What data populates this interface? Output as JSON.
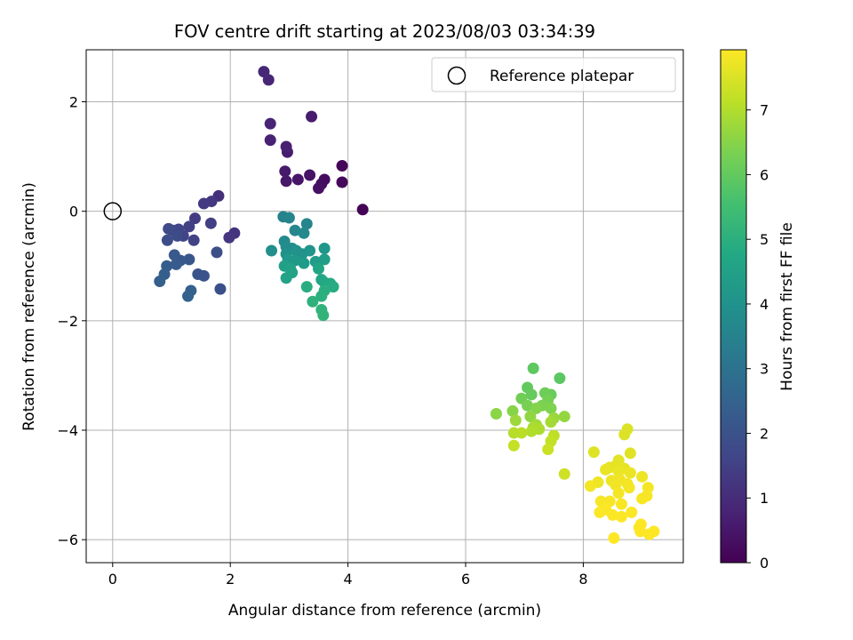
{
  "chart_data": {
    "type": "scatter",
    "title": "FOV centre drift starting at 2023/08/03 03:34:39",
    "xlabel": "Angular distance from reference (arcmin)",
    "ylabel": "Rotation from reference (arcmin)",
    "xlim": [
      -0.45,
      9.7
    ],
    "ylim": [
      -6.42,
      2.95
    ],
    "xticks": [
      0,
      2,
      4,
      6,
      8
    ],
    "yticks": [
      -6,
      -4,
      -2,
      0,
      2
    ],
    "xtick_labels": [
      "0",
      "2",
      "4",
      "6",
      "8"
    ],
    "ytick_labels": [
      "−6",
      "−4",
      "−2",
      "0",
      "2"
    ],
    "grid": true,
    "legend": {
      "position": "top-right",
      "label": "Reference platepar",
      "marker": "open-circle"
    },
    "reference_point": {
      "x": 0,
      "y": 0
    },
    "colorbar": {
      "label": "Hours from first FF file",
      "colormap": "viridis",
      "range": [
        0,
        7.93
      ],
      "ticks": [
        0,
        1,
        2,
        3,
        4,
        5,
        6,
        7
      ],
      "tick_labels": [
        "0",
        "1",
        "2",
        "3",
        "4",
        "5",
        "6",
        "7"
      ]
    },
    "points": [
      {
        "x": 4.25,
        "y": 0.03,
        "t": 0.02
      },
      {
        "x": 3.9,
        "y": 0.83,
        "t": 0.1
      },
      {
        "x": 3.9,
        "y": 0.53,
        "t": 0.15
      },
      {
        "x": 3.6,
        "y": 0.58,
        "t": 0.25
      },
      {
        "x": 3.55,
        "y": 0.5,
        "t": 0.3
      },
      {
        "x": 3.5,
        "y": 0.42,
        "t": 0.35
      },
      {
        "x": 3.35,
        "y": 0.66,
        "t": 0.4
      },
      {
        "x": 3.15,
        "y": 0.58,
        "t": 0.45
      },
      {
        "x": 2.95,
        "y": 0.55,
        "t": 0.5
      },
      {
        "x": 2.93,
        "y": 0.73,
        "t": 0.55
      },
      {
        "x": 3.38,
        "y": 1.73,
        "t": 0.6
      },
      {
        "x": 2.97,
        "y": 1.08,
        "t": 0.65
      },
      {
        "x": 2.95,
        "y": 1.18,
        "t": 0.7
      },
      {
        "x": 2.68,
        "y": 1.3,
        "t": 0.75
      },
      {
        "x": 2.68,
        "y": 1.6,
        "t": 0.8
      },
      {
        "x": 2.65,
        "y": 2.4,
        "t": 0.85
      },
      {
        "x": 2.57,
        "y": 2.55,
        "t": 0.9
      },
      {
        "x": 1.8,
        "y": 0.28,
        "t": 1.1
      },
      {
        "x": 2.07,
        "y": -0.4,
        "t": 1.2
      },
      {
        "x": 1.98,
        "y": -0.48,
        "t": 1.25
      },
      {
        "x": 1.68,
        "y": 0.18,
        "t": 1.3
      },
      {
        "x": 1.55,
        "y": 0.14,
        "t": 1.35
      },
      {
        "x": 1.4,
        "y": -0.13,
        "t": 1.4
      },
      {
        "x": 1.67,
        "y": -0.22,
        "t": 1.45
      },
      {
        "x": 1.3,
        "y": -0.28,
        "t": 1.5
      },
      {
        "x": 1.38,
        "y": -0.53,
        "t": 1.55
      },
      {
        "x": 1.2,
        "y": -0.45,
        "t": 1.6
      },
      {
        "x": 1.12,
        "y": -0.33,
        "t": 1.65
      },
      {
        "x": 1.02,
        "y": -0.35,
        "t": 1.7
      },
      {
        "x": 0.95,
        "y": -0.32,
        "t": 1.75
      },
      {
        "x": 1.1,
        "y": -0.45,
        "t": 1.8
      },
      {
        "x": 0.93,
        "y": -0.53,
        "t": 1.85
      },
      {
        "x": 1.77,
        "y": -0.75,
        "t": 1.9
      },
      {
        "x": 1.83,
        "y": -1.42,
        "t": 1.95
      },
      {
        "x": 1.55,
        "y": -1.18,
        "t": 2.0
      },
      {
        "x": 1.45,
        "y": -1.15,
        "t": 2.05
      },
      {
        "x": 1.3,
        "y": -0.88,
        "t": 2.1
      },
      {
        "x": 1.15,
        "y": -0.9,
        "t": 2.15
      },
      {
        "x": 1.05,
        "y": -0.8,
        "t": 2.2
      },
      {
        "x": 1.08,
        "y": -0.97,
        "t": 2.25
      },
      {
        "x": 0.92,
        "y": -1.0,
        "t": 2.3
      },
      {
        "x": 0.88,
        "y": -1.15,
        "t": 2.35
      },
      {
        "x": 0.8,
        "y": -1.28,
        "t": 2.4
      },
      {
        "x": 1.33,
        "y": -1.45,
        "t": 2.45
      },
      {
        "x": 1.28,
        "y": -1.55,
        "t": 2.5
      },
      {
        "x": 2.9,
        "y": -0.1,
        "t": 3.5
      },
      {
        "x": 3.0,
        "y": -0.12,
        "t": 3.55
      },
      {
        "x": 3.3,
        "y": -0.23,
        "t": 3.6
      },
      {
        "x": 3.1,
        "y": -0.35,
        "t": 3.65
      },
      {
        "x": 3.25,
        "y": -0.4,
        "t": 3.7
      },
      {
        "x": 2.92,
        "y": -0.55,
        "t": 3.75
      },
      {
        "x": 2.95,
        "y": -0.65,
        "t": 3.8
      },
      {
        "x": 3.05,
        "y": -0.68,
        "t": 3.85
      },
      {
        "x": 2.7,
        "y": -0.72,
        "t": 3.9
      },
      {
        "x": 2.95,
        "y": -0.78,
        "t": 3.95
      },
      {
        "x": 3.12,
        "y": -0.72,
        "t": 4.0
      },
      {
        "x": 3.22,
        "y": -0.78,
        "t": 4.05
      },
      {
        "x": 3.35,
        "y": -0.72,
        "t": 4.1
      },
      {
        "x": 3.6,
        "y": -0.68,
        "t": 4.15
      },
      {
        "x": 2.98,
        "y": -0.88,
        "t": 4.2
      },
      {
        "x": 3.1,
        "y": -0.9,
        "t": 4.25
      },
      {
        "x": 3.25,
        "y": -0.95,
        "t": 4.3
      },
      {
        "x": 3.45,
        "y": -0.92,
        "t": 4.35
      },
      {
        "x": 3.6,
        "y": -0.88,
        "t": 4.4
      },
      {
        "x": 2.92,
        "y": -1.0,
        "t": 4.45
      },
      {
        "x": 3.02,
        "y": -1.05,
        "t": 4.5
      },
      {
        "x": 2.95,
        "y": -1.22,
        "t": 4.55
      },
      {
        "x": 3.05,
        "y": -1.12,
        "t": 4.6
      },
      {
        "x": 3.5,
        "y": -1.05,
        "t": 4.65
      },
      {
        "x": 3.55,
        "y": -1.25,
        "t": 4.7
      },
      {
        "x": 3.6,
        "y": -1.3,
        "t": 4.75
      },
      {
        "x": 3.7,
        "y": -1.32,
        "t": 4.8
      },
      {
        "x": 3.75,
        "y": -1.38,
        "t": 4.85
      },
      {
        "x": 3.3,
        "y": -1.38,
        "t": 4.9
      },
      {
        "x": 3.6,
        "y": -1.45,
        "t": 4.95
      },
      {
        "x": 3.55,
        "y": -1.55,
        "t": 5.0
      },
      {
        "x": 3.4,
        "y": -1.65,
        "t": 5.05
      },
      {
        "x": 3.55,
        "y": -1.8,
        "t": 5.1
      },
      {
        "x": 3.58,
        "y": -1.9,
        "t": 5.15
      },
      {
        "x": 7.6,
        "y": -3.05,
        "t": 5.9
      },
      {
        "x": 7.15,
        "y": -2.87,
        "t": 5.95
      },
      {
        "x": 7.05,
        "y": -3.22,
        "t": 6.0
      },
      {
        "x": 7.12,
        "y": -3.35,
        "t": 6.05
      },
      {
        "x": 7.45,
        "y": -3.35,
        "t": 6.1
      },
      {
        "x": 7.35,
        "y": -3.32,
        "t": 6.15
      },
      {
        "x": 6.95,
        "y": -3.42,
        "t": 6.2
      },
      {
        "x": 7.4,
        "y": -3.45,
        "t": 6.25
      },
      {
        "x": 7.05,
        "y": -3.55,
        "t": 6.3
      },
      {
        "x": 7.3,
        "y": -3.55,
        "t": 6.35
      },
      {
        "x": 7.45,
        "y": -3.6,
        "t": 6.4
      },
      {
        "x": 7.2,
        "y": -3.6,
        "t": 6.45
      },
      {
        "x": 6.8,
        "y": -3.65,
        "t": 6.5
      },
      {
        "x": 6.52,
        "y": -3.7,
        "t": 6.55
      },
      {
        "x": 7.1,
        "y": -3.75,
        "t": 6.6
      },
      {
        "x": 7.68,
        "y": -3.75,
        "t": 6.65
      },
      {
        "x": 7.5,
        "y": -3.78,
        "t": 6.7
      },
      {
        "x": 6.85,
        "y": -3.82,
        "t": 6.75
      },
      {
        "x": 7.2,
        "y": -3.9,
        "t": 6.8
      },
      {
        "x": 7.45,
        "y": -3.85,
        "t": 6.85
      },
      {
        "x": 7.15,
        "y": -3.95,
        "t": 6.9
      },
      {
        "x": 7.25,
        "y": -3.98,
        "t": 6.95
      },
      {
        "x": 7.12,
        "y": -4.02,
        "t": 7.0
      },
      {
        "x": 6.82,
        "y": -4.05,
        "t": 7.05
      },
      {
        "x": 6.95,
        "y": -4.05,
        "t": 7.1
      },
      {
        "x": 7.5,
        "y": -4.1,
        "t": 7.15
      },
      {
        "x": 7.45,
        "y": -4.2,
        "t": 7.2
      },
      {
        "x": 6.82,
        "y": -4.28,
        "t": 7.25
      },
      {
        "x": 7.4,
        "y": -4.35,
        "t": 7.3
      },
      {
        "x": 7.68,
        "y": -4.8,
        "t": 7.35
      },
      {
        "x": 8.75,
        "y": -3.98,
        "t": 7.5
      },
      {
        "x": 8.7,
        "y": -4.08,
        "t": 7.52
      },
      {
        "x": 8.18,
        "y": -4.4,
        "t": 7.55
      },
      {
        "x": 8.8,
        "y": -4.42,
        "t": 7.57
      },
      {
        "x": 8.6,
        "y": -4.55,
        "t": 7.6
      },
      {
        "x": 8.55,
        "y": -4.65,
        "t": 7.62
      },
      {
        "x": 8.45,
        "y": -4.68,
        "t": 7.64
      },
      {
        "x": 8.7,
        "y": -4.7,
        "t": 7.66
      },
      {
        "x": 8.38,
        "y": -4.72,
        "t": 7.68
      },
      {
        "x": 8.6,
        "y": -4.75,
        "t": 7.7
      },
      {
        "x": 8.8,
        "y": -4.78,
        "t": 7.72
      },
      {
        "x": 9.0,
        "y": -4.85,
        "t": 7.74
      },
      {
        "x": 8.25,
        "y": -4.95,
        "t": 7.75
      },
      {
        "x": 8.48,
        "y": -4.92,
        "t": 7.76
      },
      {
        "x": 8.62,
        "y": -4.9,
        "t": 7.77
      },
      {
        "x": 8.55,
        "y": -5.0,
        "t": 7.78
      },
      {
        "x": 8.75,
        "y": -4.98,
        "t": 7.79
      },
      {
        "x": 8.12,
        "y": -5.02,
        "t": 7.8
      },
      {
        "x": 8.78,
        "y": -5.05,
        "t": 7.81
      },
      {
        "x": 9.1,
        "y": -5.05,
        "t": 7.82
      },
      {
        "x": 8.6,
        "y": -5.15,
        "t": 7.83
      },
      {
        "x": 9.08,
        "y": -5.2,
        "t": 7.84
      },
      {
        "x": 9.0,
        "y": -5.25,
        "t": 7.85
      },
      {
        "x": 8.3,
        "y": -5.3,
        "t": 7.86
      },
      {
        "x": 8.45,
        "y": -5.3,
        "t": 7.87
      },
      {
        "x": 8.65,
        "y": -5.35,
        "t": 7.88
      },
      {
        "x": 8.38,
        "y": -5.45,
        "t": 7.89
      },
      {
        "x": 8.28,
        "y": -5.5,
        "t": 7.9
      },
      {
        "x": 8.5,
        "y": -5.55,
        "t": 7.9
      },
      {
        "x": 8.82,
        "y": -5.5,
        "t": 7.91
      },
      {
        "x": 8.65,
        "y": -5.58,
        "t": 7.91
      },
      {
        "x": 8.98,
        "y": -5.72,
        "t": 7.92
      },
      {
        "x": 9.2,
        "y": -5.85,
        "t": 7.92
      },
      {
        "x": 9.12,
        "y": -5.9,
        "t": 7.93
      },
      {
        "x": 8.97,
        "y": -5.85,
        "t": 7.93
      },
      {
        "x": 8.52,
        "y": -5.97,
        "t": 7.93
      },
      {
        "x": 8.95,
        "y": -5.78,
        "t": 7.93
      }
    ]
  }
}
